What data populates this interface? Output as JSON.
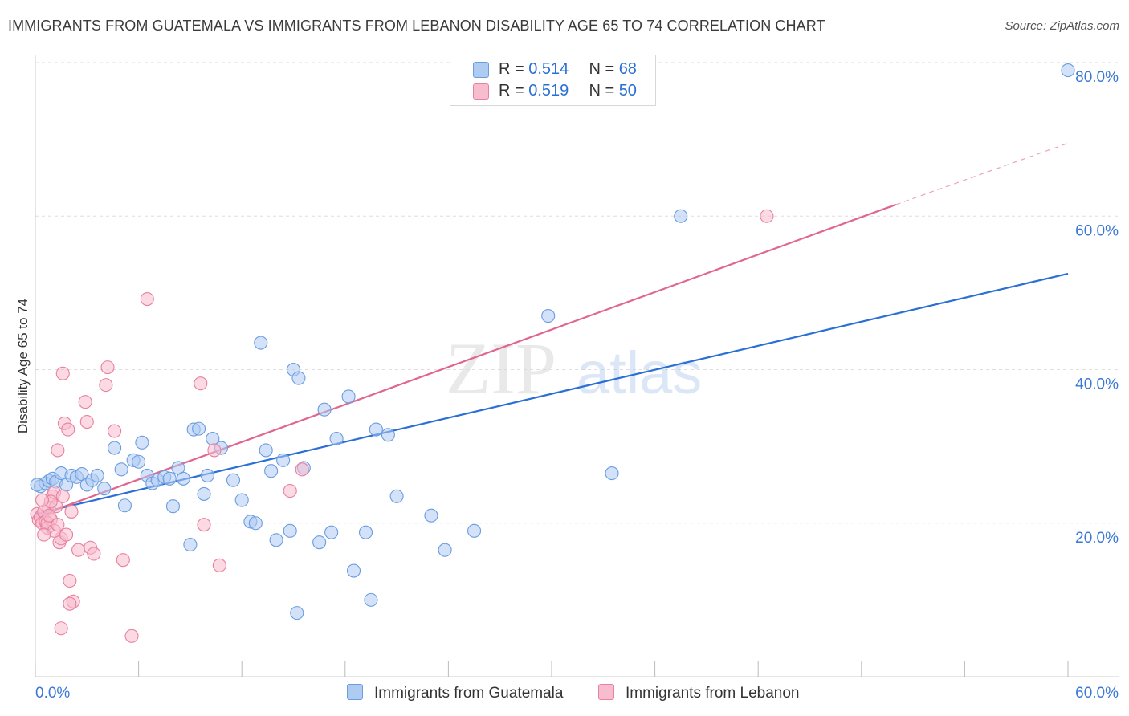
{
  "title": "IMMIGRANTS FROM GUATEMALA VS IMMIGRANTS FROM LEBANON DISABILITY AGE 65 TO 74 CORRELATION CHART",
  "source": "Source: ZipAtlas.com",
  "watermark": {
    "zip": "ZIP",
    "atlas": "atlas"
  },
  "legend": {
    "rows": [
      {
        "r_label": "R =",
        "r_value": "0.514",
        "n_label": "N =",
        "n_value": "68"
      },
      {
        "r_label": "R =",
        "r_value": "0.519",
        "n_label": "N =",
        "n_value": "50"
      }
    ]
  },
  "bottom_legend": {
    "guatemala": "Immigrants from Guatemala",
    "lebanon": "Immigrants from Lebanon"
  },
  "colors": {
    "blue_fill": "#aecbf2",
    "blue_stroke": "#6a9de0",
    "blue_line": "#2a6fd6",
    "pink_fill": "#f7bccd",
    "pink_stroke": "#e8819f",
    "pink_line": "#e06690",
    "grid": "#dddddd",
    "axis_text": "#3a78d4"
  },
  "chart_data": {
    "type": "scatter",
    "title": "IMMIGRANTS FROM GUATEMALA VS IMMIGRANTS FROM LEBANON DISABILITY AGE 65 TO 74 CORRELATION CHART",
    "xlabel": "",
    "ylabel": "Disability Age 65 to 74",
    "xlim": [
      0,
      60
    ],
    "ylim": [
      0,
      82
    ],
    "x_tick_labels": [
      {
        "value": 0,
        "label": "0.0%"
      },
      {
        "value": 60,
        "label": "60.0%"
      }
    ],
    "y_tick_labels": [
      {
        "value": 20,
        "label": "20.0%"
      },
      {
        "value": 40,
        "label": "40.0%"
      },
      {
        "value": 60,
        "label": "60.0%"
      },
      {
        "value": 80,
        "label": "80.0%"
      }
    ],
    "series": [
      {
        "name": "Immigrants from Guatemala",
        "r": 0.514,
        "n": 68,
        "trend": {
          "x1": 0,
          "y1": 21.2,
          "x2": 60,
          "y2": 52.5
        },
        "points": [
          [
            0.3,
            24.8
          ],
          [
            0.6,
            25.2
          ],
          [
            0.8,
            25.5
          ],
          [
            1.0,
            25.8
          ],
          [
            1.2,
            25.4
          ],
          [
            1.5,
            26.5
          ],
          [
            1.8,
            25.0
          ],
          [
            2.1,
            26.2
          ],
          [
            2.4,
            26.0
          ],
          [
            2.7,
            26.4
          ],
          [
            3.0,
            25.0
          ],
          [
            3.3,
            25.6
          ],
          [
            3.6,
            26.2
          ],
          [
            4.0,
            24.5
          ],
          [
            4.6,
            29.8
          ],
          [
            5.0,
            27.0
          ],
          [
            5.2,
            22.3
          ],
          [
            5.7,
            28.2
          ],
          [
            6.0,
            28.0
          ],
          [
            6.2,
            30.5
          ],
          [
            6.5,
            26.2
          ],
          [
            6.8,
            25.2
          ],
          [
            7.1,
            25.6
          ],
          [
            7.5,
            26.0
          ],
          [
            7.8,
            25.8
          ],
          [
            8.0,
            22.2
          ],
          [
            8.3,
            27.2
          ],
          [
            8.6,
            25.8
          ],
          [
            9.0,
            17.2
          ],
          [
            9.2,
            32.2
          ],
          [
            9.5,
            32.3
          ],
          [
            9.8,
            23.8
          ],
          [
            10.0,
            26.2
          ],
          [
            10.3,
            31.0
          ],
          [
            10.8,
            29.8
          ],
          [
            11.5,
            25.6
          ],
          [
            12.0,
            23.0
          ],
          [
            12.5,
            20.2
          ],
          [
            12.8,
            20.0
          ],
          [
            13.1,
            43.5
          ],
          [
            13.4,
            29.5
          ],
          [
            13.7,
            26.8
          ],
          [
            14.0,
            17.8
          ],
          [
            14.4,
            28.2
          ],
          [
            14.8,
            19.0
          ],
          [
            15.0,
            40.0
          ],
          [
            15.3,
            38.9
          ],
          [
            15.6,
            27.2
          ],
          [
            15.2,
            8.3
          ],
          [
            16.5,
            17.5
          ],
          [
            16.8,
            34.8
          ],
          [
            17.2,
            18.8
          ],
          [
            17.5,
            31.0
          ],
          [
            18.2,
            36.5
          ],
          [
            18.5,
            13.8
          ],
          [
            19.2,
            18.8
          ],
          [
            19.5,
            10.0
          ],
          [
            19.8,
            32.2
          ],
          [
            20.5,
            31.5
          ],
          [
            21.0,
            23.5
          ],
          [
            23.0,
            21.0
          ],
          [
            23.8,
            16.5
          ],
          [
            25.5,
            19.0
          ],
          [
            29.8,
            47.0
          ],
          [
            33.5,
            26.5
          ],
          [
            37.5,
            60.0
          ],
          [
            60.0,
            79.0
          ],
          [
            0.1,
            25.0
          ]
        ]
      },
      {
        "name": "Immigrants from Lebanon",
        "r": 0.519,
        "n": 50,
        "trend": {
          "x1": 0,
          "y1": 20.8,
          "x2": 50,
          "y2": 61.5
        },
        "trend_dashed": {
          "x1": 50,
          "y1": 61.5,
          "x2": 60,
          "y2": 69.5
        },
        "points": [
          [
            0.1,
            21.2
          ],
          [
            0.2,
            20.4
          ],
          [
            0.3,
            20.8
          ],
          [
            0.4,
            20.0
          ],
          [
            0.5,
            21.5
          ],
          [
            0.6,
            20.2
          ],
          [
            0.7,
            19.4
          ],
          [
            0.8,
            22.0
          ],
          [
            0.9,
            20.5
          ],
          [
            1.0,
            23.5
          ],
          [
            1.1,
            24.0
          ],
          [
            1.2,
            22.2
          ],
          [
            1.3,
            29.5
          ],
          [
            1.4,
            17.5
          ],
          [
            1.5,
            18.0
          ],
          [
            1.6,
            39.5
          ],
          [
            1.7,
            33.0
          ],
          [
            1.8,
            18.5
          ],
          [
            1.9,
            32.2
          ],
          [
            2.0,
            12.5
          ],
          [
            2.1,
            21.5
          ],
          [
            2.2,
            9.8
          ],
          [
            2.5,
            16.5
          ],
          [
            2.9,
            35.8
          ],
          [
            3.0,
            33.2
          ],
          [
            3.2,
            16.8
          ],
          [
            3.4,
            16.0
          ],
          [
            4.2,
            40.3
          ],
          [
            4.1,
            38.0
          ],
          [
            4.6,
            32.0
          ],
          [
            5.1,
            15.2
          ],
          [
            5.6,
            5.3
          ],
          [
            6.5,
            49.2
          ],
          [
            9.8,
            19.8
          ],
          [
            9.6,
            38.2
          ],
          [
            10.4,
            29.5
          ],
          [
            10.7,
            14.5
          ],
          [
            14.8,
            24.2
          ],
          [
            15.5,
            27.0
          ],
          [
            42.5,
            60.0
          ],
          [
            1.5,
            6.3
          ],
          [
            0.9,
            22.8
          ],
          [
            2.0,
            9.5
          ],
          [
            1.6,
            23.5
          ],
          [
            0.7,
            20.0
          ],
          [
            1.1,
            19.0
          ],
          [
            0.5,
            18.5
          ],
          [
            0.8,
            21.0
          ],
          [
            1.3,
            19.8
          ],
          [
            0.4,
            23.0
          ]
        ]
      }
    ]
  }
}
